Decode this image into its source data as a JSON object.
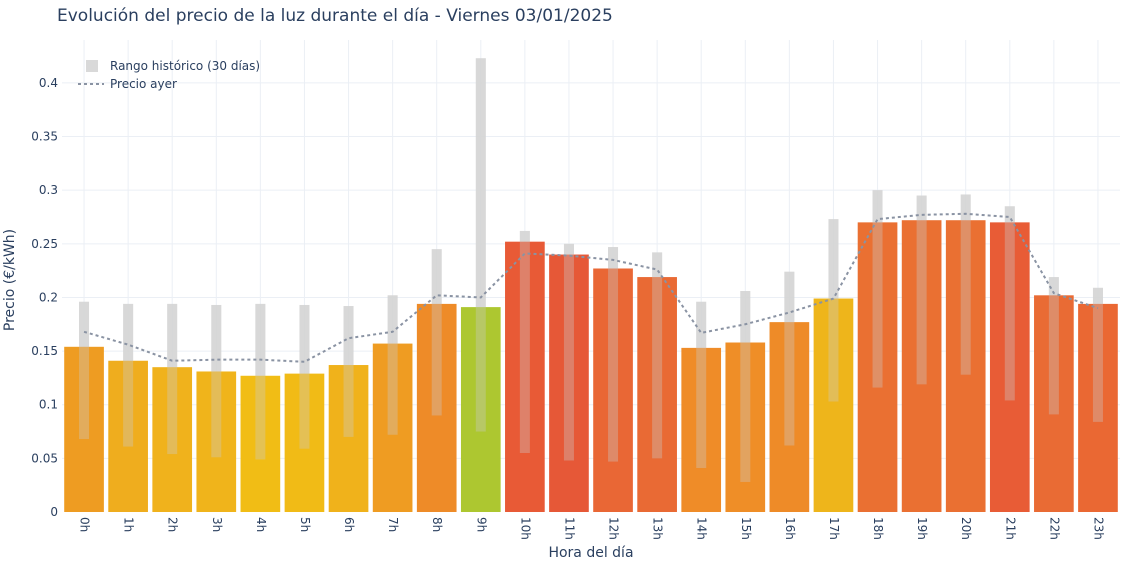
{
  "chart_data": {
    "type": "bar",
    "title": "Evolución del precio de la luz durante el día - Viernes 03/01/2025",
    "xlabel": "Hora del día",
    "ylabel": "Precio (€/kWh)",
    "ylim": [
      0,
      0.44
    ],
    "yticks": [
      0,
      0.05,
      0.1,
      0.15,
      0.2,
      0.25,
      0.3,
      0.35,
      0.4
    ],
    "ytick_labels": [
      "0",
      "0.05",
      "0.1",
      "0.15",
      "0.2",
      "0.25",
      "0.3",
      "0.35",
      "0.4"
    ],
    "grid": true,
    "legend_position": "top-left",
    "categories": [
      "0h",
      "1h",
      "2h",
      "3h",
      "4h",
      "5h",
      "6h",
      "7h",
      "8h",
      "9h",
      "10h",
      "11h",
      "12h",
      "13h",
      "14h",
      "15h",
      "16h",
      "17h",
      "18h",
      "19h",
      "20h",
      "21h",
      "22h",
      "23h"
    ],
    "values": [
      0.154,
      0.141,
      0.135,
      0.131,
      0.127,
      0.129,
      0.137,
      0.157,
      0.194,
      0.191,
      0.252,
      0.24,
      0.227,
      0.219,
      0.153,
      0.158,
      0.177,
      0.199,
      0.27,
      0.272,
      0.272,
      0.27,
      0.202,
      0.194
    ],
    "bar_colors": [
      "#ee9c22",
      "#efad1e",
      "#f0b21c",
      "#f0b41b",
      "#f1bd15",
      "#f1bb16",
      "#f0b21b",
      "#ef9c22",
      "#ee8b28",
      "#adc730",
      "#e85a36",
      "#e65837",
      "#e96735",
      "#e96a34",
      "#ef8c28",
      "#ef8e27",
      "#ee8b28",
      "#eeb51b",
      "#ea7032",
      "#ea7032",
      "#ea7032",
      "#e85c36",
      "#e96b34",
      "#ea6833"
    ],
    "series": [
      {
        "name": "Rango histórico (30 días)",
        "low": [
          0.068,
          0.061,
          0.054,
          0.051,
          0.049,
          0.059,
          0.07,
          0.072,
          0.09,
          0.075,
          0.055,
          0.048,
          0.047,
          0.05,
          0.041,
          0.028,
          0.062,
          0.103,
          0.116,
          0.119,
          0.128,
          0.104,
          0.091,
          0.084
        ],
        "high": [
          0.196,
          0.194,
          0.194,
          0.193,
          0.194,
          0.193,
          0.192,
          0.202,
          0.245,
          0.423,
          0.262,
          0.25,
          0.247,
          0.242,
          0.196,
          0.206,
          0.224,
          0.273,
          0.3,
          0.295,
          0.296,
          0.285,
          0.219,
          0.209
        ],
        "color": "#d9d9d9"
      },
      {
        "name": "Precio ayer",
        "values": [
          0.168,
          0.156,
          0.141,
          0.142,
          0.142,
          0.14,
          0.162,
          0.168,
          0.202,
          0.2,
          0.241,
          0.239,
          0.235,
          0.226,
          0.167,
          0.175,
          0.186,
          0.199,
          0.273,
          0.277,
          0.278,
          0.275,
          0.204,
          0.19
        ],
        "color": "#8a93a3"
      }
    ]
  }
}
